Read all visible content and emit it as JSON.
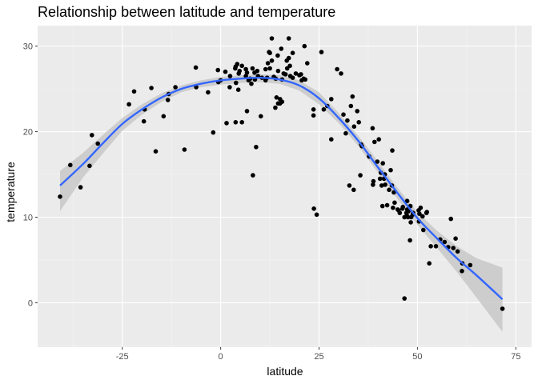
{
  "chart_data": {
    "type": "scatter",
    "title": "Relationship between latitude and temperature",
    "xlabel": "latitude",
    "ylabel": "temperature",
    "xlim": [
      -46.5,
      79
    ],
    "ylim": [
      -5.2,
      32.4
    ],
    "x_ticks": [
      -25,
      0,
      25,
      50,
      75
    ],
    "y_ticks": [
      0,
      10,
      20,
      30
    ],
    "x_tick_labels": [
      "-25",
      "0",
      "25",
      "50",
      "75"
    ],
    "y_tick_labels": [
      "0",
      "10",
      "20",
      "30"
    ],
    "grid": true,
    "legend": "none",
    "points": [
      [
        -40.8,
        12.4
      ],
      [
        -38.2,
        16.1
      ],
      [
        -35.6,
        13.5
      ],
      [
        -33.3,
        16.0
      ],
      [
        -32.7,
        19.6
      ],
      [
        -31.2,
        18.6
      ],
      [
        -23.3,
        23.2
      ],
      [
        -22.0,
        24.7
      ],
      [
        -19.5,
        21.2
      ],
      [
        -19.3,
        22.6
      ],
      [
        -17.6,
        25.1
      ],
      [
        -16.5,
        17.7
      ],
      [
        -14.5,
        21.8
      ],
      [
        -13.4,
        23.7
      ],
      [
        -13.2,
        24.4
      ],
      [
        -11.5,
        25.2
      ],
      [
        -9.2,
        17.9
      ],
      [
        -6.3,
        27.5
      ],
      [
        -6.2,
        25.2
      ],
      [
        -3.2,
        24.6
      ],
      [
        -1.9,
        19.9
      ],
      [
        -0.7,
        27.2
      ],
      [
        -0.6,
        25.8
      ],
      [
        0.0,
        26.0
      ],
      [
        1.2,
        27.0
      ],
      [
        1.5,
        21.0
      ],
      [
        2.4,
        26.5
      ],
      [
        2.3,
        25.2
      ],
      [
        3.7,
        27.4
      ],
      [
        3.8,
        27.6
      ],
      [
        3.9,
        25.7
      ],
      [
        3.8,
        21.1
      ],
      [
        4.2,
        27.9
      ],
      [
        4.5,
        24.9
      ],
      [
        4.6,
        26.8
      ],
      [
        4.8,
        27.1
      ],
      [
        5.4,
        27.7
      ],
      [
        5.4,
        21.1
      ],
      [
        6.4,
        27.3
      ],
      [
        6.4,
        26.5
      ],
      [
        6.7,
        22.4
      ],
      [
        6.7,
        26.9
      ],
      [
        7.1,
        26.0
      ],
      [
        7.5,
        26.2
      ],
      [
        7.8,
        25.6
      ],
      [
        8.1,
        27.4
      ],
      [
        8.2,
        14.9
      ],
      [
        8.7,
        26.1
      ],
      [
        8.6,
        26.9
      ],
      [
        9.0,
        18.2
      ],
      [
        9.3,
        27.1
      ],
      [
        9.5,
        26.5
      ],
      [
        10.2,
        21.8
      ],
      [
        10.5,
        26.3
      ],
      [
        11.4,
        26.0
      ],
      [
        11.4,
        27.3
      ],
      [
        11.8,
        26.3
      ],
      [
        12.0,
        28.0
      ],
      [
        12.3,
        29.3
      ],
      [
        12.5,
        29.2
      ],
      [
        12.5,
        27.4
      ],
      [
        13.0,
        28.3
      ],
      [
        13.0,
        30.9
      ],
      [
        13.5,
        26.4
      ],
      [
        13.9,
        22.8
      ],
      [
        14.0,
        26.2
      ],
      [
        14.2,
        24.0
      ],
      [
        14.5,
        28.9
      ],
      [
        14.6,
        23.3
      ],
      [
        14.6,
        27.1
      ],
      [
        15.1,
        23.8
      ],
      [
        15.1,
        23.3
      ],
      [
        15.4,
        29.7
      ],
      [
        15.6,
        23.5
      ],
      [
        15.6,
        26.1
      ],
      [
        16.0,
        26.8
      ],
      [
        16.5,
        26.7
      ],
      [
        16.8,
        28.3
      ],
      [
        16.9,
        27.4
      ],
      [
        17.3,
        30.9
      ],
      [
        17.3,
        28.6
      ],
      [
        17.6,
        27.7
      ],
      [
        17.7,
        26.5
      ],
      [
        18.3,
        29.2
      ],
      [
        18.3,
        26.3
      ],
      [
        19.1,
        26.8
      ],
      [
        20.0,
        26.6
      ],
      [
        20.4,
        26.7
      ],
      [
        20.6,
        26.0
      ],
      [
        21.1,
        26.2
      ],
      [
        21.3,
        30.0
      ],
      [
        21.5,
        26.1
      ],
      [
        22.0,
        28.0
      ],
      [
        23.6,
        22.6
      ],
      [
        23.6,
        21.9
      ],
      [
        23.7,
        11.0
      ],
      [
        24.4,
        10.3
      ],
      [
        25.6,
        29.3
      ],
      [
        26.2,
        22.6
      ],
      [
        27.1,
        23.0
      ],
      [
        28.1,
        23.8
      ],
      [
        28.1,
        19.1
      ],
      [
        29.6,
        27.3
      ],
      [
        30.6,
        26.8
      ],
      [
        31.2,
        22.0
      ],
      [
        31.8,
        19.8
      ],
      [
        32.2,
        21.3
      ],
      [
        32.7,
        13.7
      ],
      [
        33.1,
        23.0
      ],
      [
        33.5,
        24.1
      ],
      [
        33.8,
        13.2
      ],
      [
        33.9,
        20.6
      ],
      [
        34.7,
        22.4
      ],
      [
        35.1,
        21.1
      ],
      [
        35.5,
        14.9
      ],
      [
        35.7,
        18.5
      ],
      [
        35.9,
        18.3
      ],
      [
        37.7,
        17.1
      ],
      [
        38.6,
        20.4
      ],
      [
        38.7,
        13.8
      ],
      [
        38.8,
        14.2
      ],
      [
        39.1,
        18.8
      ],
      [
        39.8,
        16.5
      ],
      [
        40.2,
        19.1
      ],
      [
        40.5,
        14.5
      ],
      [
        40.7,
        15.2
      ],
      [
        40.9,
        13.7
      ],
      [
        41.1,
        11.3
      ],
      [
        41.2,
        16.3
      ],
      [
        41.5,
        14.5
      ],
      [
        41.7,
        15.0
      ],
      [
        41.8,
        13.8
      ],
      [
        42.3,
        11.4
      ],
      [
        42.8,
        13.2
      ],
      [
        43.2,
        15.5
      ],
      [
        43.5,
        13.7
      ],
      [
        43.6,
        17.8
      ],
      [
        43.8,
        11.1
      ],
      [
        44.0,
        12.9
      ],
      [
        44.2,
        11.7
      ],
      [
        45.0,
        10.9
      ],
      [
        45.2,
        10.8
      ],
      [
        45.5,
        10.5
      ],
      [
        46.2,
        11.0
      ],
      [
        46.3,
        11.2
      ],
      [
        46.7,
        0.5
      ],
      [
        46.7,
        10.0
      ],
      [
        47.2,
        10.5
      ],
      [
        47.3,
        10.2
      ],
      [
        47.4,
        11.9
      ],
      [
        47.4,
        10.9
      ],
      [
        47.6,
        10.0
      ],
      [
        47.7,
        10.7
      ],
      [
        48.1,
        7.3
      ],
      [
        48.2,
        11.3
      ],
      [
        48.3,
        9.4
      ],
      [
        48.4,
        10.0
      ],
      [
        48.8,
        10.3
      ],
      [
        48.9,
        10.5
      ],
      [
        50.3,
        10.8
      ],
      [
        50.4,
        9.5
      ],
      [
        50.5,
        10.4
      ],
      [
        50.8,
        11.1
      ],
      [
        51.3,
        10.1
      ],
      [
        51.5,
        8.5
      ],
      [
        52.3,
        10.5
      ],
      [
        52.4,
        10.6
      ],
      [
        53.0,
        4.6
      ],
      [
        53.4,
        6.6
      ],
      [
        54.7,
        6.6
      ],
      [
        55.8,
        7.4
      ],
      [
        56.9,
        7.1
      ],
      [
        57.8,
        6.5
      ],
      [
        58.5,
        9.8
      ],
      [
        59.1,
        6.4
      ],
      [
        59.7,
        7.5
      ],
      [
        60.2,
        6.0
      ],
      [
        61.3,
        3.7
      ],
      [
        61.4,
        4.6
      ],
      [
        63.4,
        4.4
      ],
      [
        71.6,
        -0.7
      ]
    ],
    "smooth_line": [
      [
        -40.8,
        13.7
      ],
      [
        -35.0,
        16.2
      ],
      [
        -30.0,
        18.6
      ],
      [
        -25.0,
        20.9
      ],
      [
        -20.0,
        22.6
      ],
      [
        -15.0,
        24.0
      ],
      [
        -10.0,
        25.0
      ],
      [
        -5.0,
        25.6
      ],
      [
        0.0,
        26.0
      ],
      [
        5.0,
        26.2
      ],
      [
        10.0,
        26.3
      ],
      [
        15.0,
        26.1
      ],
      [
        20.0,
        25.4
      ],
      [
        25.0,
        23.9
      ],
      [
        30.0,
        21.6
      ],
      [
        35.0,
        18.9
      ],
      [
        40.0,
        15.8
      ],
      [
        45.0,
        12.8
      ],
      [
        50.0,
        9.9
      ],
      [
        55.0,
        7.5
      ],
      [
        60.0,
        5.2
      ],
      [
        65.0,
        3.2
      ],
      [
        71.6,
        0.4
      ]
    ],
    "ci_upper": [
      [
        -40.8,
        15.4
      ],
      [
        -35.0,
        17.5
      ],
      [
        -30.0,
        19.6
      ],
      [
        -25.0,
        21.6
      ],
      [
        -20.0,
        23.2
      ],
      [
        -15.0,
        24.5
      ],
      [
        -10.0,
        25.4
      ],
      [
        -5.0,
        26.0
      ],
      [
        0.0,
        26.4
      ],
      [
        5.0,
        26.6
      ],
      [
        10.0,
        26.7
      ],
      [
        15.0,
        26.6
      ],
      [
        20.0,
        26.0
      ],
      [
        25.0,
        24.6
      ],
      [
        30.0,
        22.2
      ],
      [
        35.0,
        19.5
      ],
      [
        40.0,
        16.5
      ],
      [
        45.0,
        13.4
      ],
      [
        50.0,
        10.6
      ],
      [
        55.0,
        8.4
      ],
      [
        60.0,
        6.6
      ],
      [
        65.0,
        5.2
      ],
      [
        71.6,
        4.1
      ]
    ],
    "ci_lower": [
      [
        -40.8,
        10.7
      ],
      [
        -35.0,
        14.6
      ],
      [
        -30.0,
        17.4
      ],
      [
        -25.0,
        20.1
      ],
      [
        -20.0,
        22.0
      ],
      [
        -15.0,
        23.5
      ],
      [
        -10.0,
        24.6
      ],
      [
        -5.0,
        25.2
      ],
      [
        0.0,
        25.5
      ],
      [
        5.0,
        25.7
      ],
      [
        10.0,
        25.8
      ],
      [
        15.0,
        25.6
      ],
      [
        20.0,
        24.8
      ],
      [
        25.0,
        23.2
      ],
      [
        30.0,
        21.0
      ],
      [
        35.0,
        18.3
      ],
      [
        40.0,
        15.2
      ],
      [
        45.0,
        12.1
      ],
      [
        50.0,
        9.1
      ],
      [
        55.0,
        6.4
      ],
      [
        60.0,
        3.6
      ],
      [
        65.0,
        0.6
      ],
      [
        71.6,
        -3.4
      ]
    ],
    "colors": {
      "panel": "#ebebeb",
      "grid_major": "#ffffff",
      "grid_minor": "#f5f5f5",
      "point": "#000000",
      "line": "#3366ff",
      "ribbon": "#c8c8c8"
    }
  }
}
